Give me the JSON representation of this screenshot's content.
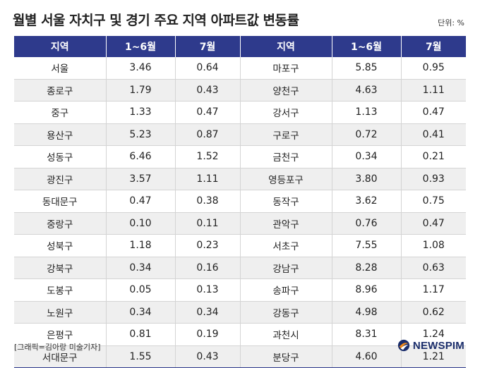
{
  "title": "월별 서울 자치구 및 경기 주요 지역 아파트값 변동률",
  "unit": "단위: %",
  "headers": [
    "지역",
    "1~6월",
    "7월",
    "지역",
    "1~6월",
    "7월"
  ],
  "credit": "[그래픽=김아랑 미술기자]",
  "logo_text": "NEWSPIM",
  "colors": {
    "header_bg": "#2e3a8c",
    "row_alt": "#efefef",
    "logo_blue": "#1a2d6b",
    "logo_orange": "#f08a1c"
  },
  "chart_data": {
    "type": "table",
    "columns": [
      "지역",
      "1~6월",
      "7월"
    ],
    "left": [
      {
        "region": "서울",
        "h1": "3.46",
        "jul": "0.64"
      },
      {
        "region": "종로구",
        "h1": "1.79",
        "jul": "0.43"
      },
      {
        "region": "중구",
        "h1": "1.33",
        "jul": "0.47"
      },
      {
        "region": "용산구",
        "h1": "5.23",
        "jul": "0.87"
      },
      {
        "region": "성동구",
        "h1": "6.46",
        "jul": "1.52"
      },
      {
        "region": "광진구",
        "h1": "3.57",
        "jul": "1.11"
      },
      {
        "region": "동대문구",
        "h1": "0.47",
        "jul": "0.38"
      },
      {
        "region": "중랑구",
        "h1": "0.10",
        "jul": "0.11"
      },
      {
        "region": "성북구",
        "h1": "1.18",
        "jul": "0.23"
      },
      {
        "region": "강북구",
        "h1": "0.34",
        "jul": "0.16"
      },
      {
        "region": "도봉구",
        "h1": "0.05",
        "jul": "0.13"
      },
      {
        "region": "노원구",
        "h1": "0.34",
        "jul": "0.34"
      },
      {
        "region": "은평구",
        "h1": "0.81",
        "jul": "0.19"
      },
      {
        "region": "서대문구",
        "h1": "1.55",
        "jul": "0.43"
      }
    ],
    "right": [
      {
        "region": "마포구",
        "h1": "5.85",
        "jul": "0.95"
      },
      {
        "region": "양천구",
        "h1": "4.63",
        "jul": "1.11"
      },
      {
        "region": "강서구",
        "h1": "1.13",
        "jul": "0.47"
      },
      {
        "region": "구로구",
        "h1": "0.72",
        "jul": "0.41"
      },
      {
        "region": "금천구",
        "h1": "0.34",
        "jul": "0.21"
      },
      {
        "region": "영등포구",
        "h1": "3.80",
        "jul": "0.93"
      },
      {
        "region": "동작구",
        "h1": "3.62",
        "jul": "0.75"
      },
      {
        "region": "관악구",
        "h1": "0.76",
        "jul": "0.47"
      },
      {
        "region": "서초구",
        "h1": "7.55",
        "jul": "1.08"
      },
      {
        "region": "강남구",
        "h1": "8.28",
        "jul": "0.63"
      },
      {
        "region": "송파구",
        "h1": "8.96",
        "jul": "1.17"
      },
      {
        "region": "강동구",
        "h1": "4.98",
        "jul": "0.62"
      },
      {
        "region": "과천시",
        "h1": "8.31",
        "jul": "1.24"
      },
      {
        "region": "분당구",
        "h1": "4.60",
        "jul": "1.21"
      }
    ]
  }
}
